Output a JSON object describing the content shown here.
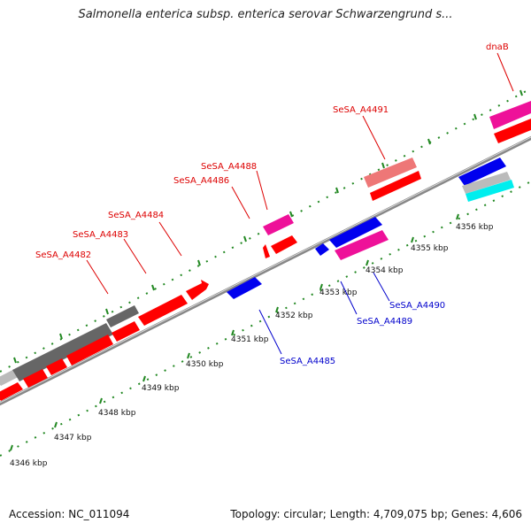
{
  "title": "Salmonella enterica subsp. enterica serovar Schwarzengrund s...",
  "footer": {
    "accession": "Accession: NC_011094",
    "info": "Topology: circular; Length: 4,709,075 bp; Genes: 4,606"
  },
  "colors": {
    "forward_cds": "#ff0000",
    "reverse_cds": "#0000ee",
    "pink": "#ee1199",
    "light_red": "#ee7777",
    "dark_gray": "#666666",
    "light_gray": "#bbbbbb",
    "cyan": "#00eeee",
    "tick_green": "#228822",
    "label_red": "#dd0000",
    "label_blue": "#0000cc"
  },
  "scale_labels": [
    "4346 kbp",
    "4347 kbp",
    "4348 kbp",
    "4349 kbp",
    "4350 kbp",
    "4351 kbp",
    "4352 kbp",
    "4353 kbp",
    "4354 kbp",
    "4355 kbp",
    "4356 kbp"
  ],
  "gene_labels": {
    "top": [
      "SeSA_A4482",
      "SeSA_A4483",
      "SeSA_A4484",
      "SeSA_A4486",
      "SeSA_A4488",
      "SeSA_A4491",
      "dnaB"
    ],
    "bottom": [
      "SeSA_A4485",
      "SeSA_A4489",
      "SeSA_A4490"
    ]
  }
}
